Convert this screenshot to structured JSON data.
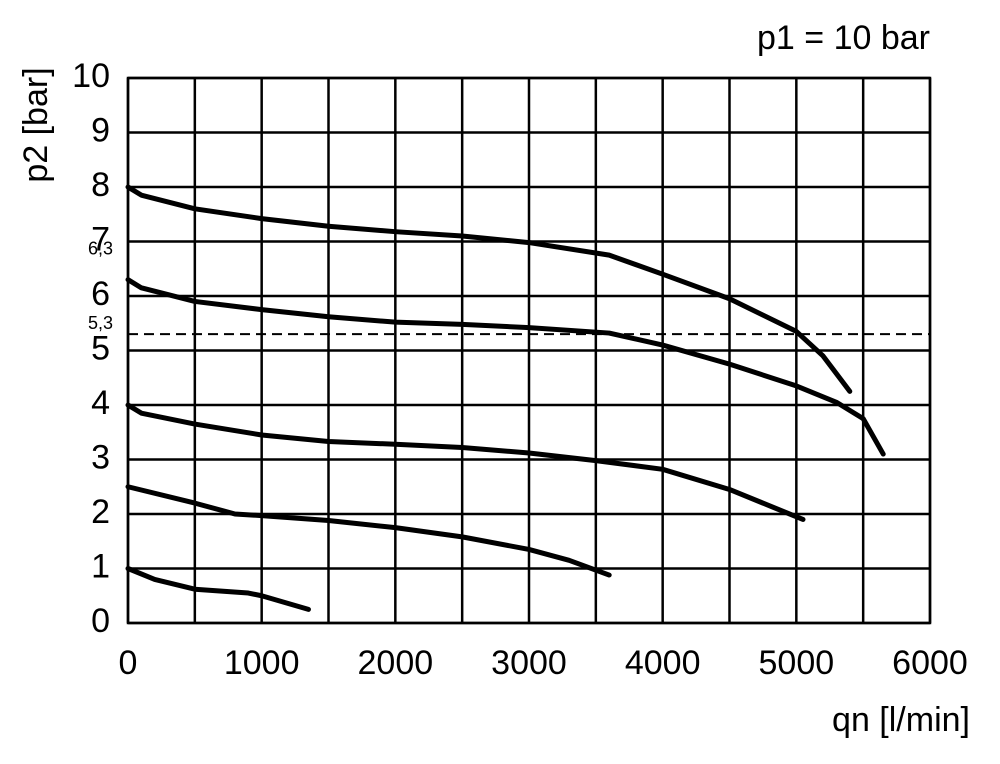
{
  "chart_data": {
    "type": "line",
    "title": "p1 = 10 bar",
    "x_label": "qn [l/min]",
    "y_label": "p2 [bar]",
    "xlim": [
      0,
      6000
    ],
    "xticks": [
      0,
      1000,
      2000,
      3000,
      4000,
      5000,
      6000
    ],
    "xminor": [
      500,
      1500,
      2500,
      3500,
      4500,
      5500
    ],
    "ylim": [
      0,
      10
    ],
    "yticks": [
      0,
      1,
      2,
      3,
      4,
      5,
      6,
      7,
      8,
      9,
      10
    ],
    "grid": true,
    "reference_lines": [
      {
        "value": 5.3,
        "label": "5,3",
        "dashed": true
      }
    ],
    "annotations": [
      {
        "value": 6.3,
        "label": "6,3"
      }
    ],
    "series": [
      {
        "color": "#000000",
        "x": [
          0,
          100,
          500,
          1000,
          1500,
          2000,
          2500,
          3000,
          3600,
          4000,
          4500,
          5000,
          5200,
          5400
        ],
        "values": [
          8.0,
          7.85,
          7.6,
          7.42,
          7.28,
          7.18,
          7.1,
          6.98,
          6.75,
          6.4,
          5.95,
          5.35,
          4.9,
          4.25
        ]
      },
      {
        "color": "#000000",
        "x": [
          0,
          100,
          500,
          1000,
          1500,
          2000,
          2500,
          3000,
          3600,
          4000,
          4500,
          5000,
          5300,
          5500,
          5650
        ],
        "values": [
          6.3,
          6.15,
          5.9,
          5.75,
          5.62,
          5.52,
          5.48,
          5.42,
          5.32,
          5.1,
          4.75,
          4.35,
          4.05,
          3.75,
          3.1
        ]
      },
      {
        "color": "#000000",
        "x": [
          0,
          100,
          500,
          1000,
          1500,
          2000,
          2500,
          3000,
          3500,
          4000,
          4500,
          5050
        ],
        "values": [
          4.0,
          3.85,
          3.65,
          3.45,
          3.33,
          3.28,
          3.22,
          3.12,
          2.98,
          2.82,
          2.45,
          1.9
        ]
      },
      {
        "color": "#000000",
        "x": [
          0,
          500,
          800,
          1000,
          1500,
          2000,
          2500,
          3000,
          3300,
          3600
        ],
        "values": [
          2.5,
          2.2,
          2.0,
          1.97,
          1.88,
          1.75,
          1.58,
          1.35,
          1.15,
          0.88
        ]
      },
      {
        "color": "#000000",
        "x": [
          0,
          200,
          500,
          900,
          1000,
          1350
        ],
        "values": [
          1.0,
          0.8,
          0.62,
          0.55,
          0.5,
          0.25
        ]
      }
    ]
  }
}
